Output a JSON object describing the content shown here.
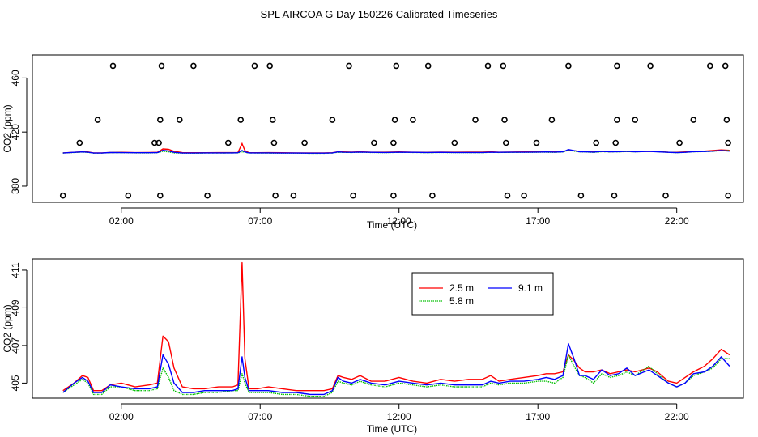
{
  "title": "SPL AIRCOA G  Day 150226  Calibrated Timeseries",
  "colors": {
    "s25": "#ff0000",
    "s58": "#00c000",
    "s91": "#0000ff",
    "axis": "#000000"
  },
  "chart_data": [
    {
      "type": "line+scatter",
      "id": "top",
      "xlabel": "Time (UTC)",
      "ylabel": "CO2 (ppm)",
      "xlim": [
        -1.2,
        24.4
      ],
      "ylim": [
        368,
        477
      ],
      "xticks": [
        2,
        7,
        12,
        17,
        22
      ],
      "xtick_labels": [
        "02:00",
        "07:00",
        "12:00",
        "17:00",
        "22:00"
      ],
      "yticks": [
        380,
        420,
        460
      ],
      "ytick_labels": [
        "380",
        "420",
        "460"
      ],
      "scatter_points": [
        [
          1.7,
          469
        ],
        [
          3.45,
          469
        ],
        [
          4.6,
          469
        ],
        [
          6.8,
          469
        ],
        [
          7.35,
          469
        ],
        [
          10.2,
          469
        ],
        [
          11.9,
          469
        ],
        [
          13.05,
          469
        ],
        [
          15.2,
          469
        ],
        [
          15.75,
          469
        ],
        [
          18.1,
          469
        ],
        [
          19.85,
          469
        ],
        [
          21.05,
          469
        ],
        [
          23.2,
          469
        ],
        [
          23.75,
          469
        ],
        [
          1.15,
          429
        ],
        [
          3.4,
          429
        ],
        [
          4.1,
          429
        ],
        [
          6.3,
          429
        ],
        [
          7.45,
          429
        ],
        [
          9.6,
          429
        ],
        [
          11.85,
          429
        ],
        [
          12.5,
          429
        ],
        [
          14.75,
          429
        ],
        [
          15.8,
          429
        ],
        [
          17.5,
          429
        ],
        [
          19.85,
          429
        ],
        [
          20.5,
          429
        ],
        [
          22.6,
          429
        ],
        [
          23.8,
          429
        ],
        [
          0.5,
          412
        ],
        [
          3.2,
          412
        ],
        [
          3.35,
          412
        ],
        [
          5.85,
          412
        ],
        [
          7.5,
          412
        ],
        [
          8.6,
          412
        ],
        [
          11.1,
          412
        ],
        [
          11.8,
          412
        ],
        [
          14.0,
          412
        ],
        [
          15.85,
          412
        ],
        [
          16.95,
          412
        ],
        [
          19.1,
          412
        ],
        [
          19.8,
          412
        ],
        [
          22.1,
          412
        ],
        [
          23.85,
          412
        ],
        [
          -0.1,
          373
        ],
        [
          2.25,
          373
        ],
        [
          3.4,
          373
        ],
        [
          5.1,
          373
        ],
        [
          7.55,
          373
        ],
        [
          8.2,
          373
        ],
        [
          10.35,
          373
        ],
        [
          11.8,
          373
        ],
        [
          13.2,
          373
        ],
        [
          15.9,
          373
        ],
        [
          16.5,
          373
        ],
        [
          18.55,
          373
        ],
        [
          19.75,
          373
        ],
        [
          21.6,
          373
        ],
        [
          23.85,
          373
        ]
      ],
      "series": [
        {
          "name": "2.5 m",
          "color_key": "s25",
          "spikes": [
            [
              3.45,
              2.5
            ],
            [
              6.4,
              6.5
            ]
          ]
        },
        {
          "name": "5.8 m",
          "color_key": "s58",
          "spikes": [
            [
              3.45,
              1.5
            ],
            [
              6.4,
              2.0
            ]
          ]
        },
        {
          "name": "9.1 m",
          "color_key": "s91",
          "spikes": [
            [
              3.45,
              2.0
            ],
            [
              6.4,
              2.0
            ]
          ]
        }
      ]
    },
    {
      "type": "line",
      "id": "bottom",
      "xlabel": "Time (UTC)",
      "ylabel": "CO2 (ppm)",
      "xlim": [
        -1.2,
        24.4
      ],
      "ylim": [
        404.2,
        411.6
      ],
      "xticks": [
        2,
        7,
        12,
        17,
        22
      ],
      "xtick_labels": [
        "02:00",
        "07:00",
        "12:00",
        "17:00",
        "22:00"
      ],
      "yticks": [
        405,
        407,
        409,
        411
      ],
      "ytick_labels": [
        "405",
        "407",
        "409",
        "411"
      ],
      "legend": {
        "position": "top-center",
        "entries": [
          "2.5 m",
          "9.1 m",
          "5.8 m"
        ]
      },
      "series": [
        {
          "name": "2.5 m",
          "color_key": "s25",
          "x": [
            -0.1,
            0.3,
            0.6,
            0.8,
            1.0,
            1.3,
            1.6,
            2.0,
            2.5,
            3.0,
            3.3,
            3.5,
            3.7,
            3.9,
            4.2,
            4.6,
            5.0,
            5.5,
            6.0,
            6.2,
            6.35,
            6.45,
            6.6,
            6.9,
            7.3,
            7.8,
            8.3,
            8.8,
            9.3,
            9.6,
            9.8,
            10.0,
            10.3,
            10.6,
            11.0,
            11.5,
            12.0,
            12.5,
            13.0,
            13.5,
            14.0,
            14.5,
            15.0,
            15.3,
            15.6,
            16.0,
            16.5,
            17.0,
            17.3,
            17.6,
            17.9,
            18.1,
            18.3,
            18.5,
            18.7,
            19.0,
            19.3,
            19.6,
            19.9,
            20.2,
            20.5,
            21.0,
            21.3,
            21.7,
            22.0,
            22.3,
            22.6,
            23.0,
            23.3,
            23.6,
            23.9
          ],
          "y": [
            404.6,
            405.0,
            405.4,
            405.3,
            404.6,
            404.6,
            404.9,
            405.0,
            404.8,
            404.9,
            405.0,
            407.5,
            407.2,
            405.8,
            404.8,
            404.7,
            404.7,
            404.8,
            404.8,
            404.9,
            411.4,
            406.3,
            404.7,
            404.7,
            404.8,
            404.7,
            404.6,
            404.6,
            404.6,
            404.7,
            405.4,
            405.3,
            405.2,
            405.4,
            405.1,
            405.1,
            405.3,
            405.1,
            405.0,
            405.2,
            405.1,
            405.2,
            405.2,
            405.4,
            405.1,
            405.2,
            405.3,
            405.4,
            405.5,
            405.5,
            405.6,
            406.5,
            406.2,
            405.8,
            405.6,
            405.6,
            405.7,
            405.5,
            405.6,
            405.7,
            405.6,
            405.8,
            405.6,
            405.1,
            405.0,
            405.3,
            405.6,
            405.9,
            406.3,
            406.8,
            406.5
          ]
        },
        {
          "name": "5.8 m",
          "color_key": "s58",
          "x": [
            -0.1,
            0.3,
            0.6,
            0.8,
            1.0,
            1.3,
            1.6,
            2.0,
            2.5,
            3.0,
            3.3,
            3.5,
            3.7,
            3.9,
            4.2,
            4.6,
            5.0,
            5.5,
            6.0,
            6.2,
            6.35,
            6.45,
            6.6,
            6.9,
            7.3,
            7.8,
            8.3,
            8.8,
            9.3,
            9.6,
            9.8,
            10.0,
            10.3,
            10.6,
            11.0,
            11.5,
            12.0,
            12.5,
            13.0,
            13.5,
            14.0,
            14.5,
            15.0,
            15.3,
            15.6,
            16.0,
            16.5,
            17.0,
            17.3,
            17.6,
            17.9,
            18.1,
            18.3,
            18.5,
            18.7,
            19.0,
            19.3,
            19.6,
            19.9,
            20.2,
            20.5,
            21.0,
            21.3,
            21.7,
            22.0,
            22.3,
            22.6,
            23.0,
            23.3,
            23.6,
            23.9
          ],
          "y": [
            404.5,
            404.9,
            405.2,
            405.0,
            404.4,
            404.4,
            404.8,
            404.8,
            404.6,
            404.6,
            404.7,
            405.8,
            405.3,
            404.6,
            404.4,
            404.4,
            404.5,
            404.5,
            404.6,
            404.6,
            405.5,
            405.0,
            404.5,
            404.5,
            404.5,
            404.4,
            404.4,
            404.3,
            404.3,
            404.5,
            405.1,
            405.0,
            404.9,
            405.1,
            404.9,
            404.8,
            405.0,
            404.9,
            404.8,
            404.9,
            404.8,
            404.8,
            404.8,
            405.0,
            404.9,
            405.0,
            405.0,
            405.1,
            405.1,
            405.0,
            405.3,
            406.5,
            405.9,
            405.4,
            405.3,
            405.0,
            405.5,
            405.3,
            405.4,
            405.6,
            405.4,
            405.9,
            405.5,
            405.0,
            404.8,
            405.0,
            405.4,
            405.6,
            405.8,
            406.3,
            406.3
          ]
        },
        {
          "name": "9.1 m",
          "color_key": "s91",
          "x": [
            -0.1,
            0.3,
            0.6,
            0.8,
            1.0,
            1.3,
            1.6,
            2.0,
            2.5,
            3.0,
            3.3,
            3.5,
            3.7,
            3.9,
            4.2,
            4.6,
            5.0,
            5.5,
            6.0,
            6.2,
            6.35,
            6.45,
            6.6,
            6.9,
            7.3,
            7.8,
            8.3,
            8.8,
            9.3,
            9.6,
            9.8,
            10.0,
            10.3,
            10.6,
            11.0,
            11.5,
            12.0,
            12.5,
            13.0,
            13.5,
            14.0,
            14.5,
            15.0,
            15.3,
            15.6,
            16.0,
            16.5,
            17.0,
            17.3,
            17.6,
            17.9,
            18.1,
            18.3,
            18.5,
            18.7,
            19.0,
            19.3,
            19.6,
            19.9,
            20.2,
            20.5,
            21.0,
            21.3,
            21.7,
            22.0,
            22.3,
            22.6,
            23.0,
            23.3,
            23.6,
            23.9
          ],
          "y": [
            404.5,
            405.0,
            405.3,
            405.1,
            404.5,
            404.5,
            404.9,
            404.8,
            404.7,
            404.7,
            404.8,
            406.5,
            406.0,
            405.0,
            404.5,
            404.5,
            404.6,
            404.6,
            404.6,
            404.7,
            406.4,
            405.3,
            404.6,
            404.6,
            404.6,
            404.5,
            404.5,
            404.4,
            404.4,
            404.6,
            405.3,
            405.1,
            405.0,
            405.2,
            405.0,
            404.9,
            405.1,
            405.0,
            404.9,
            405.0,
            404.9,
            404.9,
            404.9,
            405.1,
            405.0,
            405.1,
            405.1,
            405.2,
            405.3,
            405.2,
            405.4,
            407.1,
            406.3,
            405.4,
            405.4,
            405.2,
            405.7,
            405.4,
            405.5,
            405.8,
            405.4,
            405.7,
            405.4,
            405.0,
            404.8,
            405.0,
            405.5,
            405.6,
            405.9,
            406.4,
            405.9
          ]
        }
      ]
    }
  ]
}
